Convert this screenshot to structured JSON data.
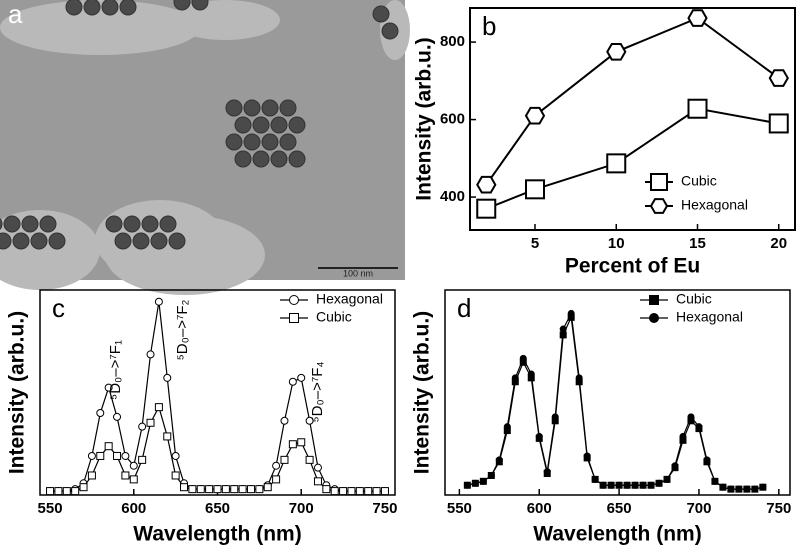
{
  "image_panel": {
    "panel_label": "a",
    "scale_bar": "100 nm"
  },
  "chart_data": [
    {
      "type": "line",
      "panel_label": "b",
      "x_label": "Percent of Eu",
      "y_label": "Intensity (arb.u.)",
      "x": [
        2,
        5,
        10,
        15,
        20
      ],
      "xlim": [
        1,
        21
      ],
      "xticks": [
        5,
        10,
        15,
        20
      ],
      "ylim": [
        315,
        888
      ],
      "yticks": [
        400,
        600,
        800
      ],
      "legend": "lower right",
      "series": [
        {
          "name": "Cubic",
          "color": "#000000",
          "marker": "square",
          "values": [
            370,
            420,
            487,
            628,
            590
          ]
        },
        {
          "name": "Hexagonal",
          "color": "#000000",
          "marker": "hexagon",
          "values": [
            432,
            610,
            775,
            862,
            707
          ]
        }
      ]
    },
    {
      "type": "line",
      "panel_label": "c",
      "x_label": "Wavelength (nm)",
      "y_label": "Intensity (arb.u.)",
      "xlim": [
        544,
        756
      ],
      "xticks": [
        550,
        600,
        650,
        700,
        750
      ],
      "ylim": [
        0,
        1.05
      ],
      "legend": "upper right",
      "annotations": [
        "⁵D₀–>⁷F₁",
        "⁵D₀–>⁷F₂",
        "⁵D₀–>⁷F₄"
      ],
      "x": [
        550,
        555,
        560,
        565,
        570,
        575,
        580,
        585,
        590,
        595,
        600,
        605,
        610,
        615,
        620,
        625,
        630,
        635,
        640,
        645,
        650,
        655,
        660,
        665,
        670,
        675,
        680,
        685,
        690,
        695,
        700,
        705,
        710,
        715,
        720,
        725,
        730,
        735,
        740,
        745,
        750
      ],
      "series": [
        {
          "name": "Hexagonal",
          "color": "#000000",
          "marker": "circle",
          "values": [
            0.02,
            0.02,
            0.02,
            0.03,
            0.06,
            0.2,
            0.42,
            0.55,
            0.4,
            0.2,
            0.15,
            0.35,
            0.72,
            0.99,
            0.6,
            0.2,
            0.06,
            0.03,
            0.03,
            0.03,
            0.03,
            0.03,
            0.03,
            0.03,
            0.03,
            0.03,
            0.05,
            0.15,
            0.38,
            0.58,
            0.6,
            0.38,
            0.14,
            0.05,
            0.03,
            0.02,
            0.02,
            0.02,
            0.02,
            0.02,
            0.02
          ]
        },
        {
          "name": "Cubic",
          "color": "#000000",
          "marker": "square",
          "values": [
            0.02,
            0.02,
            0.02,
            0.02,
            0.04,
            0.1,
            0.2,
            0.25,
            0.2,
            0.1,
            0.08,
            0.18,
            0.37,
            0.45,
            0.3,
            0.1,
            0.04,
            0.03,
            0.03,
            0.03,
            0.03,
            0.03,
            0.03,
            0.03,
            0.03,
            0.03,
            0.04,
            0.08,
            0.18,
            0.26,
            0.27,
            0.18,
            0.07,
            0.03,
            0.02,
            0.02,
            0.02,
            0.02,
            0.02,
            0.02,
            0.02
          ]
        }
      ]
    },
    {
      "type": "line",
      "panel_label": "d",
      "x_label": "Wavelength (nm)",
      "y_label": "Intensity (arb.u.)",
      "xlim": [
        541,
        757
      ],
      "xticks": [
        550,
        600,
        650,
        700,
        750
      ],
      "ylim": [
        0,
        1.05
      ],
      "legend": "upper right",
      "x": [
        555,
        560,
        565,
        570,
        575,
        580,
        585,
        590,
        595,
        600,
        605,
        610,
        615,
        620,
        625,
        630,
        635,
        640,
        645,
        650,
        655,
        660,
        665,
        670,
        675,
        680,
        685,
        690,
        695,
        700,
        705,
        710,
        715,
        720,
        725,
        730,
        735,
        740
      ],
      "series": [
        {
          "name": "Cubic",
          "color": "#000000",
          "marker": "filled-square",
          "values": [
            0.05,
            0.06,
            0.07,
            0.1,
            0.17,
            0.33,
            0.58,
            0.68,
            0.6,
            0.29,
            0.11,
            0.38,
            0.82,
            0.91,
            0.58,
            0.19,
            0.08,
            0.05,
            0.05,
            0.05,
            0.05,
            0.05,
            0.05,
            0.05,
            0.06,
            0.08,
            0.14,
            0.28,
            0.38,
            0.34,
            0.17,
            0.07,
            0.04,
            0.03,
            0.03,
            0.03,
            0.03,
            0.04
          ]
        },
        {
          "name": "Hexagonal",
          "color": "#000000",
          "marker": "filled-circle",
          "values": [
            0.05,
            0.06,
            0.07,
            0.1,
            0.18,
            0.35,
            0.6,
            0.7,
            0.62,
            0.3,
            0.12,
            0.4,
            0.85,
            0.93,
            0.6,
            0.2,
            0.08,
            0.05,
            0.05,
            0.05,
            0.05,
            0.05,
            0.05,
            0.05,
            0.06,
            0.08,
            0.15,
            0.3,
            0.4,
            0.35,
            0.18,
            0.07,
            0.04,
            0.03,
            0.03,
            0.03,
            0.03,
            0.04
          ]
        }
      ]
    }
  ]
}
